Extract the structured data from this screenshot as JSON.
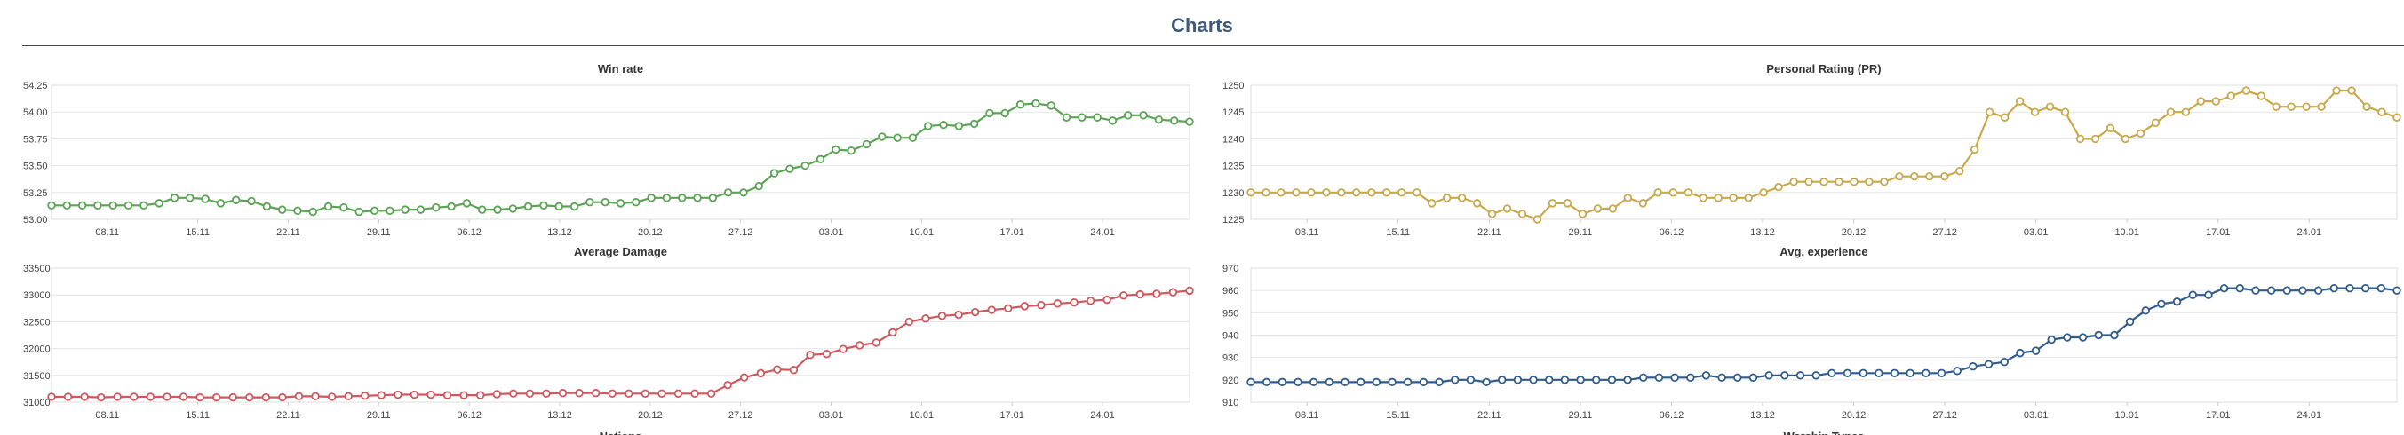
{
  "page": {
    "title": "Charts"
  },
  "chart_data": [
    {
      "type": "line",
      "title": "Win rate",
      "xlabel": "",
      "ylabel": "",
      "color": "#5aa454",
      "ylim": [
        53.0,
        54.25
      ],
      "y_ticks": [
        "54.25",
        "54.00",
        "53.75",
        "53.50",
        "53.25",
        "53.00"
      ],
      "x_labels": [
        "08.11",
        "15.11",
        "22.11",
        "29.11",
        "06.12",
        "13.12",
        "20.12",
        "27.12",
        "03.01",
        "10.01",
        "17.01",
        "24.01"
      ],
      "values": [
        53.13,
        53.13,
        53.13,
        53.13,
        53.13,
        53.13,
        53.13,
        53.15,
        53.2,
        53.2,
        53.19,
        53.15,
        53.18,
        53.17,
        53.12,
        53.09,
        53.08,
        53.07,
        53.12,
        53.11,
        53.07,
        53.08,
        53.08,
        53.09,
        53.09,
        53.11,
        53.12,
        53.15,
        53.09,
        53.09,
        53.1,
        53.12,
        53.13,
        53.12,
        53.12,
        53.16,
        53.16,
        53.15,
        53.16,
        53.2,
        53.2,
        53.2,
        53.2,
        53.2,
        53.25,
        53.25,
        53.31,
        53.43,
        53.47,
        53.5,
        53.56,
        53.65,
        53.64,
        53.7,
        53.77,
        53.76,
        53.76,
        53.87,
        53.88,
        53.87,
        53.89,
        53.99,
        53.99,
        54.07,
        54.08,
        54.06,
        53.95,
        53.95,
        53.95,
        53.92,
        53.97,
        53.97,
        53.93,
        53.92,
        53.91
      ]
    },
    {
      "type": "line",
      "title": "Personal Rating (PR)",
      "xlabel": "",
      "ylabel": "",
      "color": "#c9a84c",
      "ylim": [
        1225,
        1250
      ],
      "y_ticks": [
        "1250",
        "1245",
        "1240",
        "1235",
        "1230",
        "1225"
      ],
      "x_labels": [
        "08.11",
        "15.11",
        "22.11",
        "29.11",
        "06.12",
        "13.12",
        "20.12",
        "27.12",
        "03.01",
        "10.01",
        "17.01",
        "24.01"
      ],
      "values": [
        1230,
        1230,
        1230,
        1230,
        1230,
        1230,
        1230,
        1230,
        1230,
        1230,
        1230,
        1230,
        1228,
        1229,
        1229,
        1228,
        1226,
        1227,
        1226,
        1225,
        1228,
        1228,
        1226,
        1227,
        1227,
        1229,
        1228,
        1230,
        1230,
        1230,
        1229,
        1229,
        1229,
        1229,
        1230,
        1231,
        1232,
        1232,
        1232,
        1232,
        1232,
        1232,
        1232,
        1233,
        1233,
        1233,
        1233,
        1234,
        1238,
        1245,
        1244,
        1247,
        1245,
        1246,
        1245,
        1240,
        1240,
        1242,
        1240,
        1241,
        1243,
        1245,
        1245,
        1247,
        1247,
        1248,
        1249,
        1248,
        1246,
        1246,
        1246,
        1246,
        1249,
        1249,
        1246,
        1245,
        1244
      ]
    },
    {
      "type": "line",
      "title": "Average Damage",
      "xlabel": "",
      "ylabel": "",
      "color": "#d0575e",
      "ylim": [
        31000,
        33500
      ],
      "y_ticks": [
        "33500",
        "33000",
        "32500",
        "32000",
        "31500",
        "31000"
      ],
      "x_labels": [
        "08.11",
        "15.11",
        "22.11",
        "29.11",
        "06.12",
        "13.12",
        "20.12",
        "27.12",
        "03.01",
        "10.01",
        "17.01",
        "24.01"
      ],
      "values": [
        31100,
        31100,
        31100,
        31090,
        31100,
        31100,
        31100,
        31100,
        31100,
        31090,
        31090,
        31090,
        31090,
        31090,
        31090,
        31110,
        31110,
        31100,
        31110,
        31120,
        31130,
        31140,
        31140,
        31140,
        31130,
        31130,
        31130,
        31150,
        31160,
        31160,
        31160,
        31170,
        31170,
        31170,
        31160,
        31160,
        31160,
        31160,
        31160,
        31160,
        31160,
        31320,
        31460,
        31540,
        31610,
        31600,
        31880,
        31900,
        31990,
        32060,
        32110,
        32300,
        32500,
        32560,
        32610,
        32630,
        32680,
        32720,
        32750,
        32790,
        32810,
        32840,
        32860,
        32890,
        32910,
        32990,
        33010,
        33020,
        33050,
        33080
      ]
    },
    {
      "type": "line",
      "title": "Avg. experience",
      "xlabel": "",
      "ylabel": "",
      "color": "#2f5c8c",
      "ylim": [
        910,
        970
      ],
      "y_ticks": [
        "970",
        "960",
        "950",
        "940",
        "930",
        "920",
        "910"
      ],
      "x_labels": [
        "08.11",
        "15.11",
        "22.11",
        "29.11",
        "06.12",
        "13.12",
        "20.12",
        "27.12",
        "03.01",
        "10.01",
        "17.01",
        "24.01"
      ],
      "values": [
        919,
        919,
        919,
        919,
        919,
        919,
        919,
        919,
        919,
        919,
        919,
        919,
        919,
        920,
        920,
        919,
        920,
        920,
        920,
        920,
        920,
        920,
        920,
        920,
        920,
        921,
        921,
        921,
        921,
        922,
        921,
        921,
        921,
        922,
        922,
        922,
        922,
        923,
        923,
        923,
        923,
        923,
        923,
        923,
        923,
        924,
        926,
        927,
        928,
        932,
        933,
        938,
        939,
        939,
        940,
        940,
        946,
        951,
        954,
        955,
        958,
        958,
        961,
        961,
        960,
        960,
        960,
        960,
        960,
        961,
        961,
        961,
        961,
        960
      ]
    }
  ],
  "partial_titles": [
    "Nations",
    "Warship Types"
  ]
}
